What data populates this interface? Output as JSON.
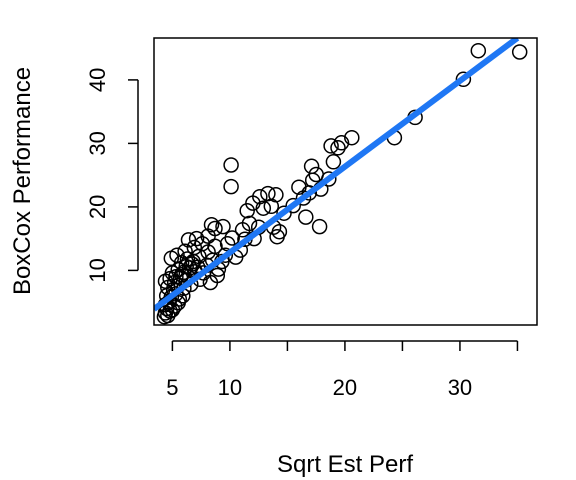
{
  "chart_data": {
    "type": "scatter",
    "title": "",
    "xlabel": "Sqrt Est Perf",
    "ylabel": "BoxCox Performance",
    "xlim": [
      3.4,
      36.7
    ],
    "ylim": [
      1.4,
      46.6
    ],
    "x_ticks": [
      5,
      10,
      20,
      30
    ],
    "x_tick_marks": [
      5,
      10,
      15,
      20,
      25,
      30,
      35
    ],
    "y_ticks": [
      10,
      20,
      30,
      40
    ],
    "grid": false,
    "legend": "none",
    "marker": "open-circle",
    "fit_line": {
      "color": "#1f77f4",
      "points": [
        [
          3.4,
          3.9
        ],
        [
          35.0,
          46.6
        ]
      ]
    },
    "points": [
      [
        4.3,
        2.7
      ],
      [
        4.4,
        3.3
      ],
      [
        4.5,
        4.0
      ],
      [
        4.6,
        2.9
      ],
      [
        4.8,
        3.6
      ],
      [
        5.0,
        3.8
      ],
      [
        4.4,
        4.6
      ],
      [
        4.7,
        5.0
      ],
      [
        5.2,
        4.4
      ],
      [
        5.5,
        4.9
      ],
      [
        4.5,
        6.0
      ],
      [
        4.9,
        5.8
      ],
      [
        5.3,
        6.3
      ],
      [
        5.6,
        5.5
      ],
      [
        5.9,
        6.0
      ],
      [
        4.6,
        7.3
      ],
      [
        5.1,
        7.0
      ],
      [
        5.5,
        7.6
      ],
      [
        6.0,
        7.2
      ],
      [
        4.4,
        8.3
      ],
      [
        4.8,
        8.7
      ],
      [
        5.2,
        8.1
      ],
      [
        5.7,
        8.8
      ],
      [
        6.2,
        8.5
      ],
      [
        6.6,
        7.8
      ],
      [
        5.0,
        9.6
      ],
      [
        5.5,
        10.1
      ],
      [
        6.0,
        9.7
      ],
      [
        6.5,
        10.4
      ],
      [
        7.0,
        9.8
      ],
      [
        5.8,
        11.2
      ],
      [
        6.3,
        11.8
      ],
      [
        6.8,
        11.4
      ],
      [
        7.3,
        12.2
      ],
      [
        4.9,
        11.9
      ],
      [
        5.4,
        12.4
      ],
      [
        6.1,
        13.0
      ],
      [
        6.9,
        13.6
      ],
      [
        7.6,
        14.2
      ],
      [
        6.4,
        14.8
      ],
      [
        7.1,
        15.0
      ],
      [
        7.7,
        9.6
      ],
      [
        7.4,
        8.6
      ],
      [
        8.0,
        10.8
      ],
      [
        8.5,
        11.6
      ],
      [
        8.1,
        12.9
      ],
      [
        8.7,
        13.8
      ],
      [
        9.0,
        10.2
      ],
      [
        9.3,
        11.4
      ],
      [
        8.3,
        8.1
      ],
      [
        8.9,
        9.2
      ],
      [
        9.6,
        12.4
      ],
      [
        8.1,
        15.4
      ],
      [
        8.7,
        16.6
      ],
      [
        9.4,
        16.9
      ],
      [
        8.4,
        17.2
      ],
      [
        9.8,
        14.2
      ],
      [
        10.2,
        15.1
      ],
      [
        10.5,
        12.1
      ],
      [
        10.9,
        13.2
      ],
      [
        11.3,
        14.9
      ],
      [
        11.1,
        16.4
      ],
      [
        11.7,
        17.4
      ],
      [
        12.1,
        15.0
      ],
      [
        12.5,
        16.8
      ],
      [
        11.5,
        19.4
      ],
      [
        12.0,
        20.6
      ],
      [
        12.6,
        21.6
      ],
      [
        12.9,
        19.8
      ],
      [
        13.3,
        22.1
      ],
      [
        13.6,
        20.1
      ],
      [
        14.0,
        21.9
      ],
      [
        13.8,
        16.8
      ],
      [
        14.3,
        16.1
      ],
      [
        14.1,
        15.3
      ],
      [
        14.7,
        19.0
      ],
      [
        15.5,
        20.2
      ],
      [
        16.0,
        23.1
      ],
      [
        16.4,
        21.4
      ],
      [
        16.9,
        22.2
      ],
      [
        17.2,
        24.2
      ],
      [
        17.1,
        26.4
      ],
      [
        17.5,
        25.1
      ],
      [
        17.9,
        22.8
      ],
      [
        17.8,
        16.9
      ],
      [
        16.6,
        18.4
      ],
      [
        18.6,
        24.4
      ],
      [
        19.0,
        27.1
      ],
      [
        18.8,
        29.6
      ],
      [
        19.4,
        29.3
      ],
      [
        19.7,
        30.1
      ],
      [
        20.6,
        30.9
      ],
      [
        10.1,
        23.2
      ],
      [
        10.1,
        26.6
      ],
      [
        24.3,
        30.9
      ],
      [
        26.1,
        34.1
      ],
      [
        30.3,
        40.1
      ],
      [
        31.6,
        44.6
      ],
      [
        35.2,
        44.4
      ],
      [
        5.3,
        9.0
      ],
      [
        5.8,
        9.3
      ],
      [
        6.2,
        10.6
      ],
      [
        6.7,
        11.0
      ],
      [
        7.2,
        10.5
      ]
    ]
  }
}
